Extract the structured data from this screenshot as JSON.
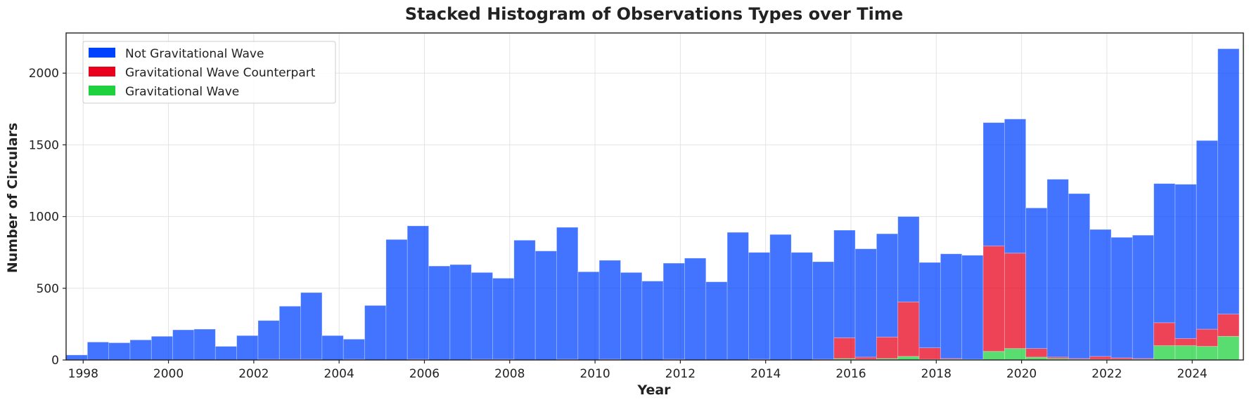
{
  "chart_data": {
    "type": "bar",
    "stacked": true,
    "title": "Stacked Histogram of Observations Types over Time",
    "xlabel": "Year",
    "ylabel": "Number of Circulars",
    "xlim": [
      1997.6,
      2025.2
    ],
    "ylim": [
      0,
      2280
    ],
    "bin_width": 0.5,
    "bin_starts": [
      1997.6,
      1998.1,
      1998.6,
      1999.1,
      1999.6,
      2000.1,
      2000.6,
      2001.1,
      2001.6,
      2002.1,
      2002.6,
      2003.1,
      2003.6,
      2004.1,
      2004.6,
      2005.1,
      2005.6,
      2006.1,
      2006.6,
      2007.1,
      2007.6,
      2008.1,
      2008.6,
      2009.1,
      2009.6,
      2010.1,
      2010.6,
      2011.1,
      2011.6,
      2012.1,
      2012.6,
      2013.1,
      2013.6,
      2014.1,
      2014.6,
      2015.1,
      2015.6,
      2016.1,
      2016.6,
      2017.1,
      2017.6,
      2018.1,
      2018.6,
      2019.1,
      2019.6,
      2020.1,
      2020.6,
      2021.1,
      2021.6,
      2022.1,
      2022.6,
      2023.1,
      2023.6,
      2024.1,
      2024.6
    ],
    "x_ticks": [
      1998,
      2000,
      2002,
      2004,
      2006,
      2008,
      2010,
      2012,
      2014,
      2016,
      2018,
      2020,
      2022,
      2024
    ],
    "y_ticks": [
      0,
      500,
      1000,
      1500,
      2000
    ],
    "grid": true,
    "legend_position": "top-left",
    "series": [
      {
        "name": "Gravitational Wave",
        "color": "#1fd13f",
        "values": [
          0,
          0,
          0,
          0,
          0,
          0,
          0,
          0,
          0,
          0,
          0,
          0,
          0,
          0,
          0,
          0,
          0,
          0,
          0,
          0,
          0,
          0,
          0,
          0,
          0,
          0,
          0,
          0,
          0,
          0,
          0,
          0,
          0,
          0,
          0,
          0,
          10,
          5,
          10,
          25,
          5,
          5,
          5,
          60,
          80,
          20,
          10,
          5,
          5,
          5,
          5,
          100,
          100,
          95,
          165
        ]
      },
      {
        "name": "Gravitational Wave Counterpart",
        "color": "#e8001c",
        "values": [
          0,
          0,
          0,
          0,
          0,
          0,
          0,
          0,
          0,
          5,
          5,
          5,
          0,
          5,
          0,
          0,
          5,
          0,
          0,
          5,
          5,
          0,
          0,
          5,
          0,
          5,
          0,
          0,
          5,
          0,
          0,
          0,
          5,
          0,
          0,
          5,
          145,
          15,
          150,
          380,
          80,
          5,
          0,
          735,
          665,
          60,
          10,
          5,
          20,
          10,
          5,
          160,
          50,
          120,
          155
        ]
      },
      {
        "name": "Not Gravitational Wave",
        "color": "#0043ff",
        "values": [
          35,
          125,
          120,
          140,
          165,
          210,
          215,
          95,
          170,
          270,
          370,
          465,
          170,
          140,
          380,
          840,
          930,
          655,
          665,
          605,
          565,
          835,
          760,
          920,
          615,
          690,
          610,
          550,
          670,
          710,
          545,
          890,
          745,
          875,
          750,
          680,
          750,
          755,
          720,
          595,
          595,
          730,
          725,
          860,
          935,
          980,
          1240,
          1150,
          885,
          840,
          860,
          970,
          1075,
          1315,
          1850
        ]
      }
    ]
  }
}
